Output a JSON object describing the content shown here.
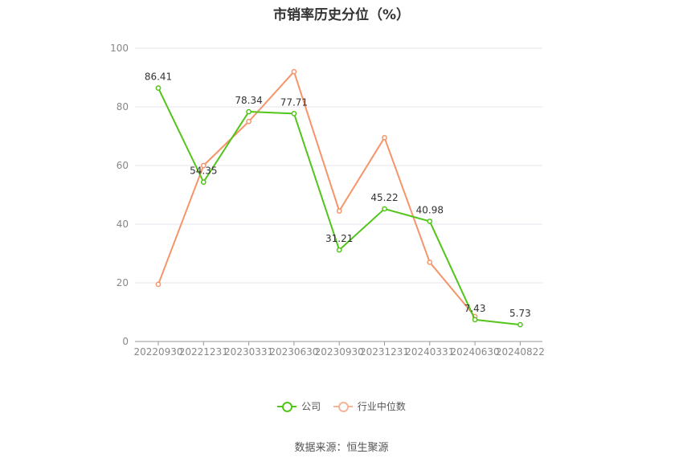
{
  "chart_data": {
    "type": "line",
    "title": "市销率历史分位（%）",
    "categories": [
      "20220930",
      "20221231",
      "20230331",
      "20230630",
      "20230930",
      "20231231",
      "20240331",
      "20240630",
      "20240822"
    ],
    "ylim": [
      0,
      100
    ],
    "yticks": [
      0,
      20,
      40,
      60,
      80,
      100
    ],
    "grid": true,
    "legend_position": "bottom",
    "series": [
      {
        "name": "公司",
        "color": "#52c41a",
        "values": [
          86.41,
          54.35,
          78.34,
          77.71,
          31.21,
          45.22,
          40.98,
          7.43,
          5.73
        ],
        "labels": [
          "86.41",
          "54.35",
          "78.34",
          "77.71",
          "31.21",
          "45.22",
          "40.98",
          "7.43",
          "5.73"
        ]
      },
      {
        "name": "行业中位数",
        "color": "#f4956a",
        "values": [
          19.5,
          60.0,
          75.0,
          92.0,
          44.5,
          69.5,
          27.0,
          8.5,
          null
        ]
      }
    ]
  },
  "source": "数据来源：恒生聚源"
}
